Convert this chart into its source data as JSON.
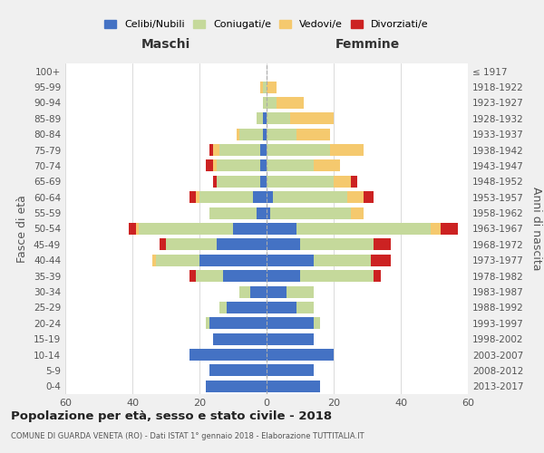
{
  "age_groups": [
    "100+",
    "95-99",
    "90-94",
    "85-89",
    "80-84",
    "75-79",
    "70-74",
    "65-69",
    "60-64",
    "55-59",
    "50-54",
    "45-49",
    "40-44",
    "35-39",
    "30-34",
    "25-29",
    "20-24",
    "15-19",
    "10-14",
    "5-9",
    "0-4"
  ],
  "birth_years": [
    "≤ 1917",
    "1918-1922",
    "1923-1927",
    "1928-1932",
    "1933-1937",
    "1938-1942",
    "1943-1947",
    "1948-1952",
    "1953-1957",
    "1958-1962",
    "1963-1967",
    "1968-1972",
    "1973-1977",
    "1978-1982",
    "1983-1987",
    "1988-1992",
    "1993-1997",
    "1998-2002",
    "2003-2007",
    "2008-2012",
    "2013-2017"
  ],
  "colors": {
    "celibi": "#4472c4",
    "coniugati": "#c5d99b",
    "vedovi": "#f5c96e",
    "divorziati": "#cc2222"
  },
  "males": {
    "celibi": [
      0,
      0,
      0,
      1,
      1,
      2,
      2,
      2,
      4,
      3,
      10,
      15,
      20,
      13,
      5,
      12,
      17,
      16,
      23,
      17,
      18
    ],
    "coniugati": [
      0,
      1,
      1,
      2,
      7,
      12,
      13,
      13,
      16,
      14,
      28,
      15,
      13,
      8,
      3,
      2,
      1,
      0,
      0,
      0,
      0
    ],
    "vedovi": [
      0,
      1,
      0,
      0,
      1,
      2,
      1,
      0,
      1,
      0,
      1,
      0,
      1,
      0,
      0,
      0,
      0,
      0,
      0,
      0,
      0
    ],
    "divorziati": [
      0,
      0,
      0,
      0,
      0,
      1,
      2,
      1,
      2,
      0,
      2,
      2,
      0,
      2,
      0,
      0,
      0,
      0,
      0,
      0,
      0
    ]
  },
  "females": {
    "celibi": [
      0,
      0,
      0,
      0,
      0,
      0,
      0,
      0,
      2,
      1,
      9,
      10,
      14,
      10,
      6,
      9,
      14,
      14,
      20,
      14,
      16
    ],
    "coniugati": [
      0,
      0,
      3,
      7,
      9,
      19,
      14,
      20,
      22,
      24,
      40,
      22,
      17,
      22,
      8,
      5,
      2,
      0,
      0,
      0,
      0
    ],
    "vedovi": [
      0,
      3,
      8,
      13,
      10,
      10,
      8,
      5,
      5,
      4,
      3,
      0,
      0,
      0,
      0,
      0,
      0,
      0,
      0,
      0,
      0
    ],
    "divorziati": [
      0,
      0,
      0,
      0,
      0,
      0,
      0,
      2,
      3,
      0,
      5,
      5,
      6,
      2,
      0,
      0,
      0,
      0,
      0,
      0,
      0
    ]
  },
  "title": "Popolazione per età, sesso e stato civile - 2018",
  "subtitle": "COMUNE DI GUARDA VENETA (RO) - Dati ISTAT 1° gennaio 2018 - Elaborazione TUTTITALIA.IT",
  "xlabel_left": "Maschi",
  "xlabel_right": "Femmine",
  "ylabel": "Fasce di età",
  "ylabel_right": "Anni di nascita",
  "xlim": 60,
  "legend_labels": [
    "Celibi/Nubili",
    "Coniugati/e",
    "Vedovi/e",
    "Divorziati/e"
  ],
  "bg_color": "#f0f0f0",
  "plot_bg": "#ffffff"
}
